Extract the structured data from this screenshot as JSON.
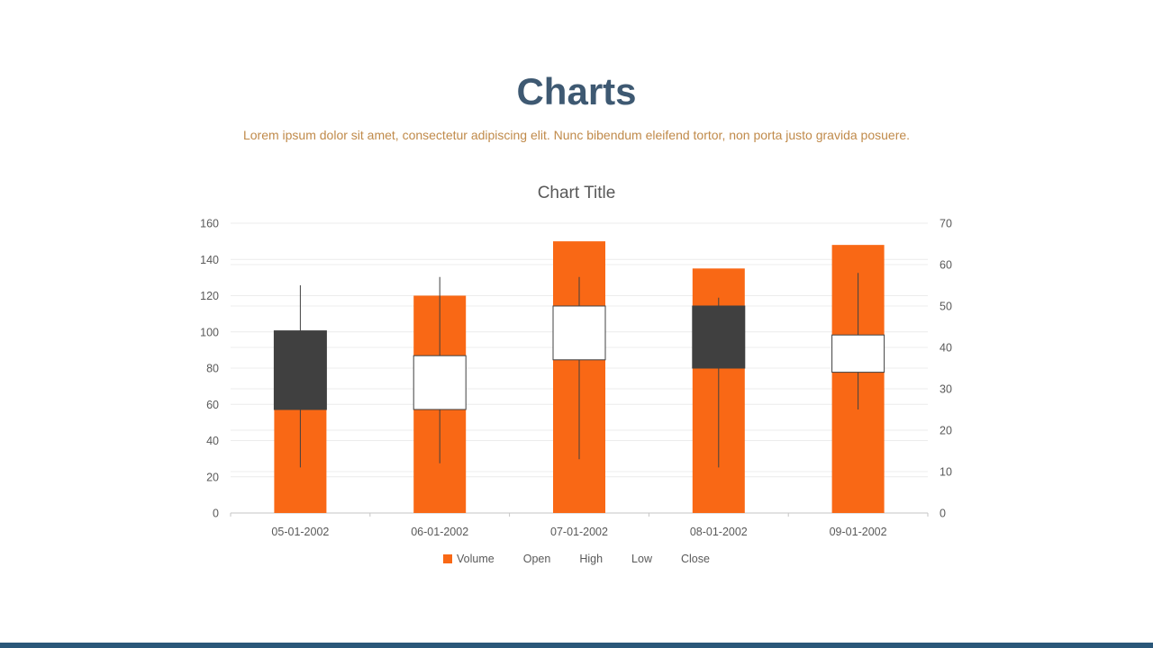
{
  "page": {
    "title": "Charts",
    "subtitle": "Lorem ipsum dolor sit amet, consectetur adipiscing elit. Nunc bibendum eleifend tortor, non porta justo gravida posuere."
  },
  "chart_data": {
    "type": "bar",
    "subtype": "volume-open-high-low-close stock chart",
    "title": "Chart Title",
    "categories": [
      "05-01-2002",
      "06-01-2002",
      "07-01-2002",
      "08-01-2002",
      "09-01-2002"
    ],
    "series": [
      {
        "name": "Volume",
        "axis": "left",
        "values": [
          100,
          120,
          150,
          135,
          148
        ]
      },
      {
        "name": "Open",
        "axis": "right",
        "values": [
          44,
          25,
          37,
          50,
          34
        ]
      },
      {
        "name": "High",
        "axis": "right",
        "values": [
          55,
          57,
          57,
          52,
          58
        ]
      },
      {
        "name": "Low",
        "axis": "right",
        "values": [
          11,
          12,
          13,
          11,
          25
        ]
      },
      {
        "name": "Close",
        "axis": "right",
        "values": [
          25,
          38,
          50,
          35,
          43
        ]
      }
    ],
    "left_axis": {
      "min": 0,
      "max": 160,
      "step": 20
    },
    "right_axis": {
      "min": 0,
      "max": 70,
      "step": 10
    },
    "legend": [
      "Volume",
      "Open",
      "High",
      "Low",
      "Close"
    ],
    "legend_position": "bottom",
    "grid": true,
    "colors": {
      "volume": "#F96815",
      "up_body": "#FFFFFF",
      "down_body": "#404040",
      "wick": "#404040",
      "grid": "#ECECEC",
      "axis_line": "#C6C6C6",
      "axis_text": "#595959"
    }
  },
  "theme": {
    "title_color": "#3E5972",
    "subtitle_color": "#C08A4A",
    "footer_accent_color": "#2A5779"
  }
}
